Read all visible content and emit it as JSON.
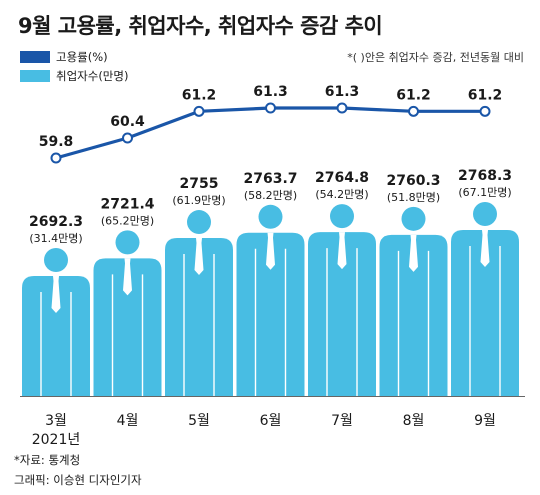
{
  "title": "9월 고용률, 취업자수, 취업자수 증감 추이",
  "note": "*( )안은 취업자수 증감, 전년동월 대비",
  "source": "*자료: 통계청",
  "credit": "그래픽: 이승현 디자인기자",
  "colors": {
    "line": "#1a56a8",
    "figure": "#48bde3",
    "axis": "#666666"
  },
  "chart_data": {
    "type": "bar",
    "title": "9월 고용률, 취업자수, 취업자수 증감 추이",
    "categories": [
      "3월",
      "4월",
      "5월",
      "6월",
      "7월",
      "8월",
      "9월"
    ],
    "year_label": "2021년",
    "series": [
      {
        "name": "고용률(%)",
        "kind": "line",
        "values": [
          59.8,
          60.4,
          61.2,
          61.3,
          61.3,
          61.2,
          61.2
        ],
        "labels": [
          "59.8",
          "60.4",
          "61.2",
          "61.3",
          "61.3",
          "61.2",
          "61.2"
        ]
      },
      {
        "name": "취업자수(만명)",
        "kind": "bar-pictogram",
        "values": [
          2692.3,
          2721.4,
          2755,
          2763.7,
          2764.8,
          2760.3,
          2768.3
        ],
        "labels": [
          "2692.3",
          "2721.4",
          "2755",
          "2763.7",
          "2764.8",
          "2760.3",
          "2768.3"
        ]
      }
    ],
    "increase_labels": [
      "(31.4만명)",
      "(65.2만명)",
      "(61.9만명)",
      "(58.2만명)",
      "(54.2만명)",
      "(51.8만명)",
      "(67.1만명)"
    ],
    "rate_ylim": [
      59.0,
      62.0
    ],
    "employed_ylim": [
      2500,
      2800
    ],
    "legend_position": "top-left",
    "grid": false
  }
}
